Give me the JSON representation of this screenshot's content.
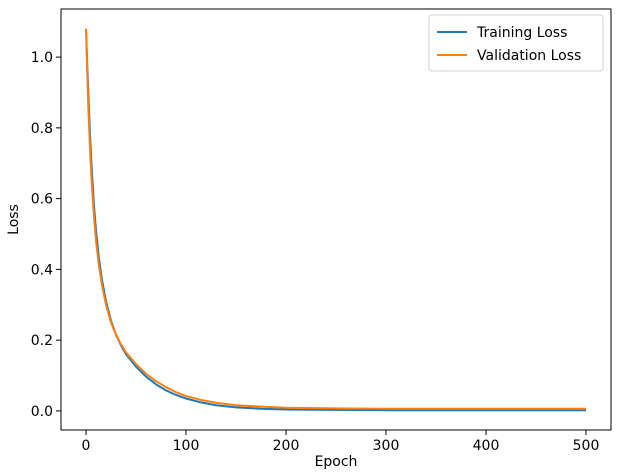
{
  "chart_data": {
    "type": "line",
    "title": "",
    "xlabel": "Epoch",
    "ylabel": "Loss",
    "xlim": [
      -25,
      525
    ],
    "ylim": [
      -0.054,
      1.136
    ],
    "xticks": [
      0,
      100,
      200,
      300,
      400,
      500
    ],
    "xtick_labels": [
      "0",
      "100",
      "200",
      "300",
      "400",
      "500"
    ],
    "yticks": [
      0.0,
      0.2,
      0.4,
      0.6,
      0.8,
      1.0
    ],
    "ytick_labels": [
      "0.0",
      "0.2",
      "0.4",
      "0.6",
      "0.8",
      "1.0"
    ],
    "grid": false,
    "legend_position": "top-right",
    "series": [
      {
        "name": "Training Loss",
        "color": "#1f77b4",
        "x": [
          0,
          2,
          4,
          6,
          8,
          10,
          13,
          16,
          20,
          25,
          30,
          35,
          40,
          50,
          60,
          70,
          80,
          90,
          100,
          115,
          130,
          150,
          175,
          200,
          250,
          300,
          350,
          400,
          450,
          500
        ],
        "y": [
          1.08,
          0.92,
          0.78,
          0.67,
          0.58,
          0.51,
          0.43,
          0.37,
          0.31,
          0.255,
          0.215,
          0.185,
          0.16,
          0.125,
          0.097,
          0.075,
          0.058,
          0.045,
          0.035,
          0.024,
          0.016,
          0.01,
          0.006,
          0.004,
          0.003,
          0.002,
          0.002,
          0.002,
          0.002,
          0.002
        ]
      },
      {
        "name": "Validation Loss",
        "color": "#ff7f0e",
        "x": [
          0,
          2,
          4,
          6,
          8,
          10,
          13,
          16,
          20,
          25,
          30,
          35,
          40,
          50,
          60,
          70,
          80,
          90,
          100,
          115,
          130,
          150,
          175,
          200,
          250,
          300,
          350,
          400,
          450,
          500
        ],
        "y": [
          1.08,
          0.88,
          0.74,
          0.63,
          0.55,
          0.48,
          0.41,
          0.355,
          0.3,
          0.25,
          0.215,
          0.188,
          0.165,
          0.132,
          0.105,
          0.084,
          0.067,
          0.053,
          0.042,
          0.031,
          0.023,
          0.016,
          0.012,
          0.009,
          0.007,
          0.006,
          0.006,
          0.006,
          0.006,
          0.006
        ]
      }
    ]
  }
}
